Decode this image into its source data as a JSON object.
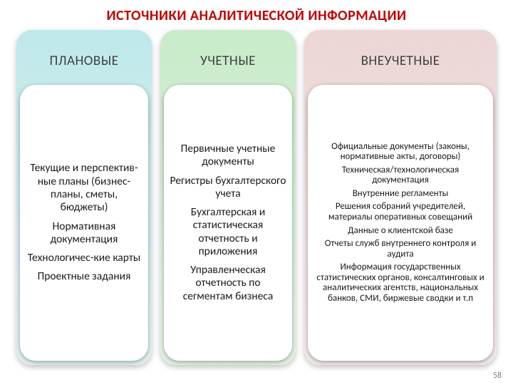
{
  "title": "ИСТОЧНИКИ АНАЛИТИЧЕСКОЙ ИНФОРМАЦИИ",
  "title_color": "#c00000",
  "page_number": "58",
  "columns": [
    {
      "heading": "ПЛАНОВЫЕ",
      "bg_gradient_top": "#bfe8ea",
      "bg_gradient_bottom": "#e2f4f5",
      "items": [
        "Текущие и перспектив-ные планы (бизнес-планы, сметы, бюджеты)",
        "Нормативная документация",
        "Технологичес-кие карты",
        "Проектные задания"
      ]
    },
    {
      "heading": "УЧЕТНЫЕ",
      "bg_gradient_top": "#c8ebc9",
      "bg_gradient_bottom": "#e6f6e6",
      "items": [
        "Первичные учетные документы",
        "Регистры бухгалтерского учета",
        "Бухгалтерская и статистическая отчетность и приложения",
        "Управленческая отчетность по сегментам бизнеса"
      ]
    },
    {
      "heading": "ВНЕУЧЕТНЫЕ",
      "bg_gradient_top": "#ecd6d6",
      "bg_gradient_bottom": "#f6ecec",
      "items": [
        "Официальные документы (законы, нормативные акты, договоры)",
        "Техническая/технологическая документация",
        "Внутренние регламенты",
        "Решения собраний учредителей, материалы оперативных совещаний",
        "Данные о клиентской базе",
        "Отчеты служб внутреннего контроля и аудита",
        "Информация государственных статистических органов, консалтинговых и аналитических агентств, национальных банков, СМИ, биржевые сводки и т.п"
      ]
    }
  ]
}
